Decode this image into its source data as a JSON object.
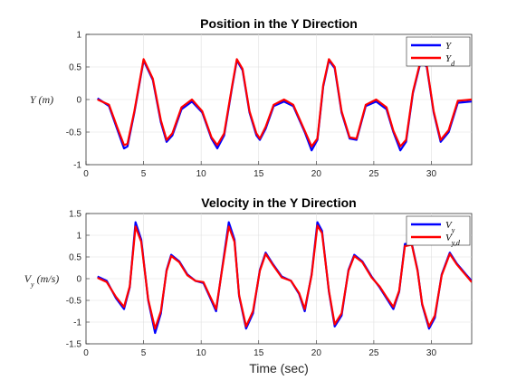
{
  "chart_data": [
    {
      "type": "line",
      "title": "Position in the Y Direction",
      "xlabel": "",
      "ylabel": "Y  (m)",
      "xlim": [
        0,
        33.5
      ],
      "ylim": [
        -1,
        1
      ],
      "xticks": [
        0,
        5,
        10,
        15,
        20,
        25,
        30
      ],
      "yticks": [
        -1,
        -0.5,
        0,
        0.5,
        1
      ],
      "ytick_labels": [
        "-1",
        "-0.5",
        "0",
        "0.5",
        "1"
      ],
      "grid": true,
      "legend_position": "top-right",
      "series": [
        {
          "name": "Y",
          "color": "#0000ff",
          "x": [
            1,
            2,
            2.7,
            3.3,
            3.6,
            4.2,
            5,
            5.8,
            6.5,
            7,
            7.5,
            8.3,
            9.2,
            10.1,
            10.9,
            11.4,
            12,
            12.7,
            13.1,
            13.6,
            14.2,
            14.8,
            15.1,
            15.6,
            16.3,
            17.2,
            18,
            19,
            19.6,
            20.1,
            20.6,
            21.1,
            21.6,
            22.2,
            22.9,
            23.5,
            24.3,
            25.2,
            26.1,
            26.7,
            27.3,
            27.8,
            28.4,
            29.1,
            29.6,
            30.2,
            30.8,
            31.5,
            32.3,
            33.5
          ],
          "y": [
            0.02,
            -0.1,
            -0.45,
            -0.75,
            -0.72,
            -0.2,
            0.6,
            0.3,
            -0.35,
            -0.65,
            -0.55,
            -0.15,
            -0.03,
            -0.2,
            -0.6,
            -0.75,
            -0.55,
            0.2,
            0.6,
            0.45,
            -0.2,
            -0.55,
            -0.62,
            -0.45,
            -0.1,
            -0.03,
            -0.1,
            -0.5,
            -0.78,
            -0.62,
            0.2,
            0.6,
            0.48,
            -0.2,
            -0.6,
            -0.62,
            -0.1,
            -0.03,
            -0.15,
            -0.5,
            -0.78,
            -0.65,
            0.1,
            0.6,
            0.5,
            -0.2,
            -0.65,
            -0.5,
            -0.05,
            -0.03
          ]
        },
        {
          "name": "Y_d",
          "color": "#ff0000",
          "x": [
            1,
            2,
            2.7,
            3.3,
            3.6,
            4.2,
            5,
            5.8,
            6.5,
            7,
            7.5,
            8.3,
            9.2,
            10.1,
            10.9,
            11.4,
            12,
            12.7,
            13.1,
            13.6,
            14.2,
            14.8,
            15.1,
            15.6,
            16.3,
            17.2,
            18,
            19,
            19.6,
            20.1,
            20.6,
            21.1,
            21.6,
            22.2,
            22.9,
            23.5,
            24.3,
            25.2,
            26.1,
            26.7,
            27.3,
            27.8,
            28.4,
            29.1,
            29.6,
            30.2,
            30.8,
            31.5,
            32.3,
            33.5
          ],
          "y": [
            0.0,
            -0.08,
            -0.42,
            -0.7,
            -0.68,
            -0.18,
            0.62,
            0.32,
            -0.32,
            -0.62,
            -0.52,
            -0.12,
            0.0,
            -0.18,
            -0.58,
            -0.7,
            -0.52,
            0.22,
            0.62,
            0.47,
            -0.18,
            -0.52,
            -0.6,
            -0.42,
            -0.08,
            0.0,
            -0.08,
            -0.48,
            -0.72,
            -0.6,
            0.22,
            0.62,
            0.5,
            -0.18,
            -0.58,
            -0.6,
            -0.08,
            0.0,
            -0.12,
            -0.48,
            -0.72,
            -0.62,
            0.12,
            0.62,
            0.52,
            -0.18,
            -0.62,
            -0.47,
            -0.02,
            0.0
          ]
        }
      ]
    },
    {
      "type": "line",
      "title": "Velocity in the Y Direction",
      "xlabel": "Time (sec)",
      "ylabel": "V_y  (m/s)",
      "xlim": [
        0,
        33.5
      ],
      "ylim": [
        -1.5,
        1.5
      ],
      "xticks": [
        0,
        5,
        10,
        15,
        20,
        25,
        30
      ],
      "yticks": [
        -1.5,
        -1,
        -0.5,
        0,
        0.5,
        1,
        1.5
      ],
      "ytick_labels": [
        "-1.5",
        "-1",
        "-0.5",
        "0",
        "0.5",
        "1",
        "1.5"
      ],
      "grid": true,
      "legend_position": "top-right",
      "series": [
        {
          "name": "V_y",
          "color": "#0000ff",
          "x": [
            1,
            1.8,
            2.6,
            3.3,
            3.8,
            4.3,
            4.8,
            5.4,
            6,
            6.5,
            7,
            7.4,
            8.1,
            8.8,
            9.5,
            10.2,
            10.8,
            11.3,
            11.8,
            12.4,
            12.9,
            13.3,
            13.9,
            14.5,
            15.1,
            15.6,
            16.2,
            17,
            17.8,
            18.5,
            19,
            19.6,
            20.1,
            20.5,
            21.1,
            21.6,
            22.2,
            22.8,
            23.3,
            24,
            24.8,
            25.5,
            26.1,
            26.7,
            27.2,
            27.7,
            28.3,
            28.8,
            29.2,
            29.8,
            30.3,
            30.9,
            31.6,
            32.2,
            33,
            33.5
          ],
          "y": [
            0.05,
            -0.05,
            -0.45,
            -0.7,
            -0.2,
            1.3,
            0.9,
            -0.5,
            -1.25,
            -0.8,
            0.2,
            0.55,
            0.4,
            0.1,
            -0.05,
            -0.1,
            -0.45,
            -0.75,
            0.2,
            1.3,
            0.9,
            -0.4,
            -1.15,
            -0.8,
            0.2,
            0.6,
            0.35,
            0.05,
            -0.05,
            -0.35,
            -0.75,
            0.1,
            1.3,
            1.1,
            -0.3,
            -1.1,
            -0.85,
            0.2,
            0.55,
            0.4,
            0.05,
            -0.2,
            -0.45,
            -0.7,
            -0.3,
            0.8,
            0.8,
            0.2,
            -0.6,
            -1.15,
            -0.9,
            0.1,
            0.6,
            0.35,
            0.1,
            -0.05
          ]
        },
        {
          "name": "V_y,d",
          "color": "#ff0000",
          "x": [
            1,
            1.8,
            2.6,
            3.3,
            3.8,
            4.3,
            4.8,
            5.4,
            6,
            6.5,
            7,
            7.4,
            8.1,
            8.8,
            9.5,
            10.2,
            10.8,
            11.3,
            11.8,
            12.4,
            12.9,
            13.3,
            13.9,
            14.5,
            15.1,
            15.6,
            16.2,
            17,
            17.8,
            18.5,
            19,
            19.6,
            20.1,
            20.5,
            21.1,
            21.6,
            22.2,
            22.8,
            23.3,
            24,
            24.8,
            25.5,
            26.1,
            26.7,
            27.2,
            27.7,
            28.3,
            28.8,
            29.2,
            29.8,
            30.3,
            30.9,
            31.6,
            32.2,
            33,
            33.5
          ],
          "y": [
            0.02,
            -0.08,
            -0.42,
            -0.65,
            -0.18,
            1.2,
            0.85,
            -0.48,
            -1.15,
            -0.75,
            0.18,
            0.52,
            0.38,
            0.08,
            -0.05,
            -0.08,
            -0.42,
            -0.7,
            0.18,
            1.2,
            0.85,
            -0.38,
            -1.1,
            -0.75,
            0.18,
            0.57,
            0.33,
            0.03,
            -0.05,
            -0.33,
            -0.7,
            0.08,
            1.22,
            1.05,
            -0.28,
            -1.05,
            -0.8,
            0.18,
            0.52,
            0.38,
            0.03,
            -0.18,
            -0.42,
            -0.65,
            -0.28,
            0.75,
            0.78,
            0.18,
            -0.58,
            -1.1,
            -0.85,
            0.08,
            0.57,
            0.33,
            0.08,
            -0.08
          ]
        }
      ]
    }
  ]
}
